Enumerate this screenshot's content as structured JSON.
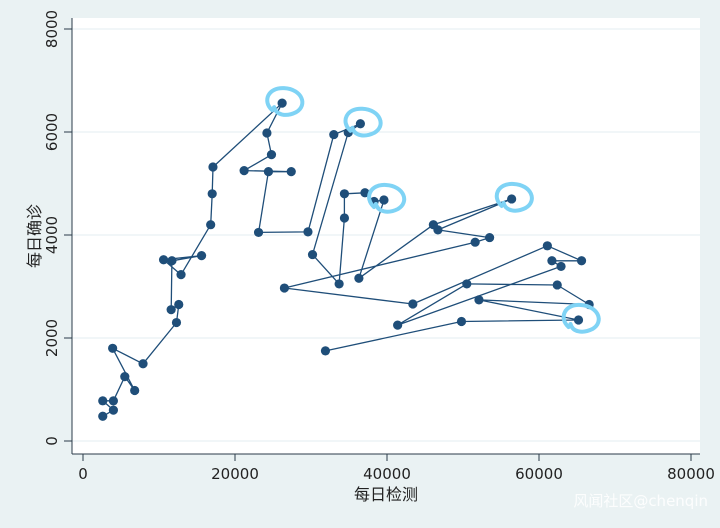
{
  "chart_data": {
    "type": "line",
    "xlabel": "每日检测",
    "ylabel": "每日确诊",
    "xlim": [
      0,
      80000
    ],
    "ylim": [
      0,
      8000
    ],
    "xticks": [
      0,
      20000,
      40000,
      60000,
      80000
    ],
    "yticks": [
      0,
      2000,
      4000,
      6000,
      8000
    ],
    "xtick_labels": [
      "0",
      "20000",
      "40000",
      "60000",
      "80000"
    ],
    "ytick_labels": [
      "0",
      "2000",
      "4000",
      "6000",
      "8000"
    ],
    "grid": "horizontal",
    "markers": true,
    "line_color": "#1f4e79",
    "marker_color": "#1f4e79",
    "highlight_color": "#7fd3f5",
    "points": [
      [
        2600,
        480
      ],
      [
        4000,
        600
      ],
      [
        2600,
        780
      ],
      [
        4000,
        780
      ],
      [
        5500,
        1250
      ],
      [
        6800,
        980
      ],
      [
        3900,
        1800
      ],
      [
        7900,
        1500
      ],
      [
        12300,
        2300
      ],
      [
        12600,
        2650
      ],
      [
        11600,
        2550
      ],
      [
        11700,
        3500
      ],
      [
        15600,
        3600
      ],
      [
        10600,
        3520
      ],
      [
        12900,
        3230
      ],
      [
        16800,
        4200
      ],
      [
        17000,
        4800
      ],
      [
        17100,
        5320
      ],
      [
        26200,
        6560
      ],
      [
        24200,
        5980
      ],
      [
        24800,
        5560
      ],
      [
        21200,
        5250
      ],
      [
        27400,
        5230
      ],
      [
        24400,
        5230
      ],
      [
        23100,
        4050
      ],
      [
        29600,
        4060
      ],
      [
        33000,
        5950
      ],
      [
        36500,
        6160
      ],
      [
        34900,
        5990
      ],
      [
        30200,
        3620
      ],
      [
        33700,
        3050
      ],
      [
        34400,
        4330
      ],
      [
        34400,
        4800
      ],
      [
        37100,
        4820
      ],
      [
        38300,
        4650
      ],
      [
        39600,
        4680
      ],
      [
        36300,
        3160
      ],
      [
        46100,
        4200
      ],
      [
        56400,
        4700
      ],
      [
        46700,
        4100
      ],
      [
        53500,
        3950
      ],
      [
        51600,
        3860
      ],
      [
        26500,
        2970
      ],
      [
        43400,
        2660
      ],
      [
        61100,
        3790
      ],
      [
        65600,
        3500
      ],
      [
        61700,
        3500
      ],
      [
        62900,
        3390
      ],
      [
        41400,
        2250
      ],
      [
        50500,
        3050
      ],
      [
        62400,
        3030
      ],
      [
        66600,
        2650
      ],
      [
        52100,
        2740
      ],
      [
        65200,
        2350
      ],
      [
        49800,
        2320
      ],
      [
        31900,
        1750
      ]
    ],
    "highlighted_points": [
      [
        26200,
        6560
      ],
      [
        36500,
        6160
      ],
      [
        39600,
        4680
      ],
      [
        56400,
        4700
      ],
      [
        65200,
        2350
      ]
    ]
  },
  "watermark": "风闻社区@chenqin"
}
